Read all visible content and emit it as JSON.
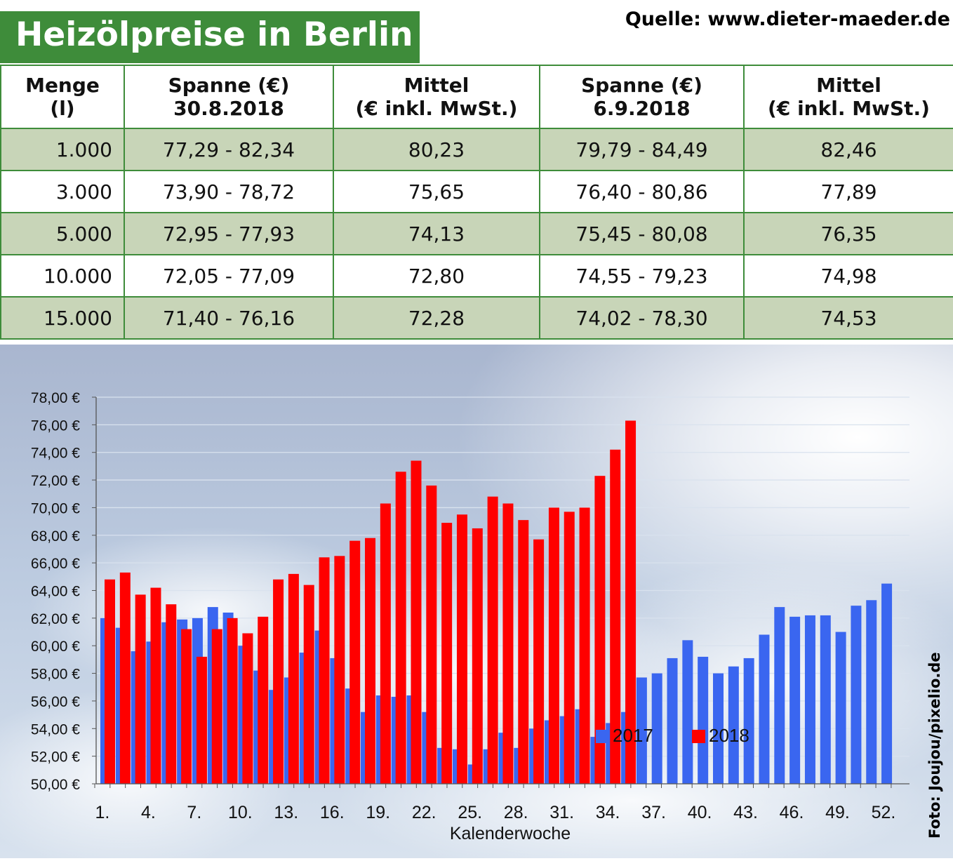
{
  "header": {
    "title": "Heizölpreise in Berlin",
    "source": "Quelle: www.dieter-maeder.de"
  },
  "table": {
    "headers": [
      {
        "line1": "Menge",
        "line2": "(l)"
      },
      {
        "line1": "Spanne (€)",
        "line2": "30.8.2018"
      },
      {
        "line1": "Mittel",
        "line2": "(€ inkl. MwSt.)"
      },
      {
        "line1": "Spanne (€)",
        "line2": "6.9.2018"
      },
      {
        "line1": "Mittel",
        "line2": "(€ inkl. MwSt.)"
      }
    ],
    "rows": [
      [
        "1.000",
        "77,29 - 82,34",
        "80,23",
        "79,79 - 84,49",
        "82,46"
      ],
      [
        "3.000",
        "73,90 - 78,72",
        "75,65",
        "76,40 - 80,86",
        "77,89"
      ],
      [
        "5.000",
        "72,95 - 77,93",
        "74,13",
        "75,45 - 80,08",
        "76,35"
      ],
      [
        "10.000",
        "72,05 - 77,09",
        "72,80",
        "74,55 - 79,23",
        "74,98"
      ],
      [
        "15.000",
        "71,40 - 76,16",
        "72,28",
        "74,02 - 78,30",
        "74,53"
      ]
    ]
  },
  "chart_data": {
    "type": "bar",
    "xlabel": "Kalenderwoche",
    "ylabel": "",
    "ylim": [
      50,
      78
    ],
    "yticks": [
      50,
      52,
      54,
      56,
      58,
      60,
      62,
      64,
      66,
      68,
      70,
      72,
      74,
      76,
      78
    ],
    "ytick_labels": [
      "50,00 €",
      "52,00 €",
      "54,00 €",
      "56,00 €",
      "58,00 €",
      "60,00 €",
      "62,00 €",
      "64,00 €",
      "66,00 €",
      "68,00 €",
      "70,00 €",
      "72,00 €",
      "74,00 €",
      "76,00 €",
      "78,00 €"
    ],
    "xtick_labels": [
      "1.",
      "4.",
      "7.",
      "10.",
      "13.",
      "16.",
      "19.",
      "22.",
      "25.",
      "28.",
      "31.",
      "34.",
      "37.",
      "40.",
      "43.",
      "46.",
      "49.",
      "52."
    ],
    "xtick_weeks": [
      1,
      4,
      7,
      10,
      13,
      16,
      19,
      22,
      25,
      28,
      31,
      34,
      37,
      40,
      43,
      46,
      49,
      52
    ],
    "legend_position": "top-center",
    "grid": true,
    "series": [
      {
        "name": "2017",
        "color": "#3a66f0",
        "values": [
          62.0,
          61.3,
          59.6,
          60.3,
          61.7,
          61.9,
          62.0,
          62.8,
          62.4,
          60.0,
          58.2,
          56.8,
          57.7,
          59.5,
          61.1,
          59.1,
          56.9,
          55.2,
          56.4,
          56.3,
          56.4,
          55.2,
          52.6,
          52.5,
          51.4,
          52.5,
          53.7,
          52.6,
          54.0,
          54.6,
          54.9,
          55.4,
          53.4,
          54.4,
          55.2,
          57.7,
          58.0,
          59.1,
          60.4,
          59.2,
          58.0,
          58.5,
          59.1,
          60.8,
          62.8,
          62.1,
          62.2,
          62.2,
          61.0,
          62.9,
          63.3,
          64.5
        ]
      },
      {
        "name": "2018",
        "color": "#ff0000",
        "values": [
          64.8,
          65.3,
          63.7,
          64.2,
          63.0,
          61.2,
          59.2,
          61.2,
          62.0,
          60.9,
          62.1,
          64.8,
          65.2,
          64.4,
          66.4,
          66.5,
          67.6,
          67.8,
          70.3,
          72.6,
          73.4,
          71.6,
          68.9,
          69.5,
          68.5,
          70.8,
          70.3,
          69.1,
          67.7,
          70.0,
          69.7,
          70.0,
          72.3,
          74.2,
          76.3
        ]
      }
    ]
  },
  "credit": "Foto: Joujou/pixelio.de"
}
